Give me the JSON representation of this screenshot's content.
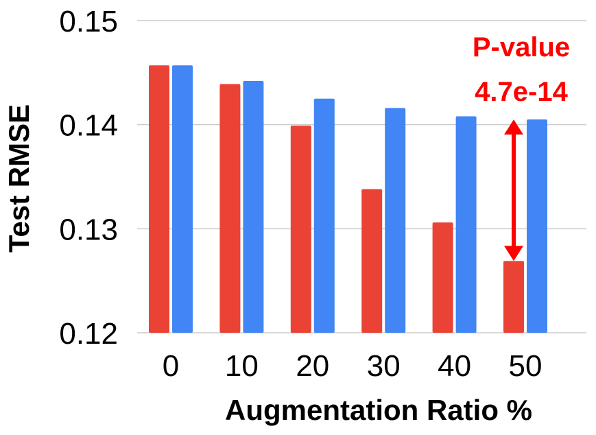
{
  "chart_data": {
    "type": "bar",
    "categories": [
      "0",
      "10",
      "20",
      "30",
      "40",
      "50"
    ],
    "series": [
      {
        "color": "#EA4335",
        "values": [
          0.1457,
          0.1439,
          0.1399,
          0.1338,
          0.1306,
          0.1269
        ]
      },
      {
        "color": "#4285F4",
        "values": [
          0.1457,
          0.1442,
          0.1425,
          0.1416,
          0.1408,
          0.1405
        ]
      }
    ],
    "title": "",
    "xlabel": "Augmentation Ratio %",
    "ylabel": "Test RMSE",
    "ylim": [
      0.12,
      0.15
    ],
    "yticks": [
      "0.12",
      "0.13",
      "0.14",
      "0.15"
    ],
    "grid": true,
    "legend": "none",
    "annotation": {
      "line1": "P-value",
      "line2": "4.7e-14",
      "color": "#FF0000",
      "arrow_category": "50",
      "arrow_range": [
        0.1269,
        0.1405
      ]
    }
  }
}
